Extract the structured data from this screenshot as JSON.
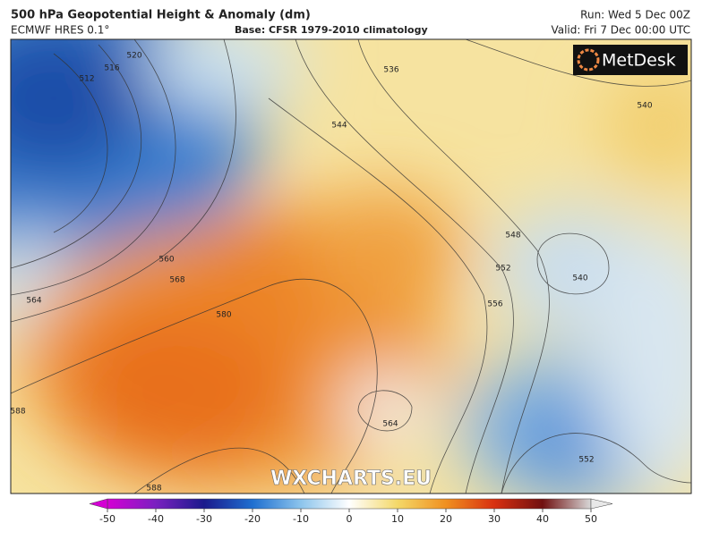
{
  "header": {
    "title": "500 hPa Geopotential Height & Anomaly (dm)",
    "model": "ECMWF HRES 0.1°",
    "base": "Base: CFSR 1979-2010 climatology",
    "run": "Run: Wed 5 Dec 00Z",
    "valid": "Valid: Fri 7 Dec 00:00 UTC"
  },
  "logo": "MetDesk",
  "watermark": "WXCHARTS.EU",
  "contour_labels": [
    "512",
    "516",
    "520",
    "536",
    "544",
    "540",
    "548",
    "552",
    "556",
    "540",
    "560",
    "568",
    "564",
    "580",
    "588",
    "564",
    "552",
    "588"
  ],
  "colorbar": {
    "lim": [
      -50,
      50
    ],
    "ticks": [
      -50,
      -40,
      -30,
      -20,
      -10,
      0,
      10,
      20,
      30,
      40,
      50
    ]
  }
}
